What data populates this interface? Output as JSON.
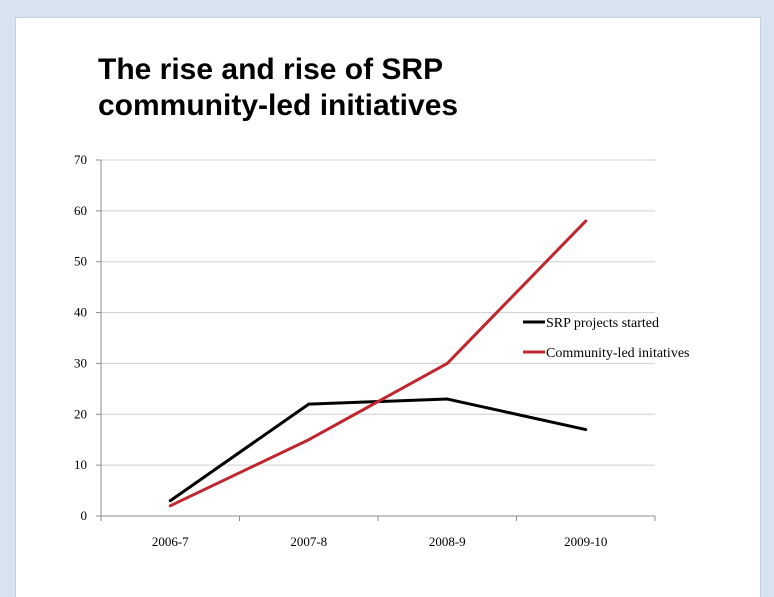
{
  "chart_data": {
    "type": "line",
    "title": "The rise and rise of SRP community-led initiatives",
    "title_lines": [
      "The rise and rise of SRP",
      "community-led initiatives"
    ],
    "categories": [
      "2006-7",
      "2007-8",
      "2008-9",
      "2009-10"
    ],
    "ylim": [
      0,
      70
    ],
    "yticks": [
      0,
      10,
      20,
      30,
      40,
      50,
      60,
      70
    ],
    "grid": true,
    "legend_position": "right",
    "series": [
      {
        "name": "SRP projects started",
        "color": "#000000",
        "values": [
          3,
          22,
          23,
          17
        ]
      },
      {
        "name": "Community-led initatives",
        "color": "#c0262d",
        "values": [
          2,
          15,
          30,
          58
        ]
      }
    ]
  }
}
